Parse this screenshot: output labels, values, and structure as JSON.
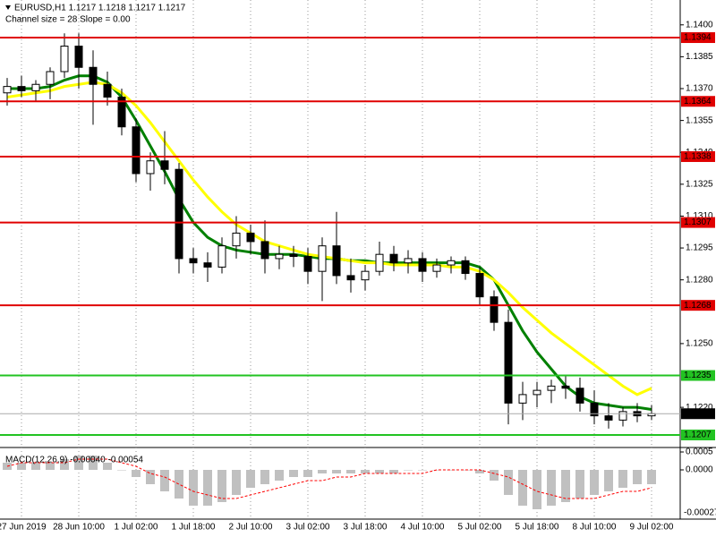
{
  "chart_data": [
    {
      "type": "candlestick",
      "title": "EURUSD,H1  1.1217 1.1218 1.1217 1.1217",
      "subtitle": "Channel size = 28 Slope = 0.00",
      "categories": [
        null,
        "27 Jun 2019",
        null,
        null,
        null,
        "28 Jun 10:00",
        null,
        null,
        null,
        "1 Jul 02:00",
        null,
        null,
        null,
        "1 Jul 18:00",
        null,
        null,
        null,
        "2 Jul 10:00",
        null,
        null,
        null,
        "3 Jul 02:00",
        null,
        null,
        null,
        "3 Jul 18:00",
        null,
        null,
        null,
        "4 Jul 10:00",
        null,
        null,
        null,
        "5 Jul 02:00",
        null,
        null,
        null,
        "5 Jul 18:00",
        null,
        null,
        null,
        "8 Jul 10:00",
        null,
        null,
        null,
        "9 Jul 02:00"
      ],
      "ohlc": [
        [
          1.1368,
          1.1375,
          1.1362,
          1.1371
        ],
        [
          1.1371,
          1.1376,
          1.1366,
          1.1369
        ],
        [
          1.1369,
          1.1374,
          1.1364,
          1.1372
        ],
        [
          1.1372,
          1.138,
          1.1365,
          1.1378
        ],
        [
          1.1378,
          1.1396,
          1.1375,
          1.139
        ],
        [
          1.139,
          1.1396,
          1.137,
          1.138
        ],
        [
          1.138,
          1.1388,
          1.1353,
          1.1372
        ],
        [
          1.1372,
          1.1378,
          1.1362,
          1.1366
        ],
        [
          1.1366,
          1.137,
          1.1348,
          1.1352
        ],
        [
          1.1352,
          1.1356,
          1.1326,
          1.133
        ],
        [
          1.133,
          1.134,
          1.1322,
          1.1336
        ],
        [
          1.1336,
          1.135,
          1.1325,
          1.1332
        ],
        [
          1.1332,
          1.1335,
          1.1283,
          1.129
        ],
        [
          1.129,
          1.1295,
          1.1283,
          1.1288
        ],
        [
          1.1288,
          1.1293,
          1.1279,
          1.1286
        ],
        [
          1.1286,
          1.13,
          1.1283,
          1.1296
        ],
        [
          1.1296,
          1.131,
          1.129,
          1.1302
        ],
        [
          1.1302,
          1.1306,
          1.1292,
          1.1298
        ],
        [
          1.1298,
          1.1308,
          1.1283,
          1.129
        ],
        [
          1.129,
          1.1296,
          1.1285,
          1.1292
        ],
        [
          1.1292,
          1.1296,
          1.1286,
          1.1291
        ],
        [
          1.1291,
          1.1295,
          1.1278,
          1.1284
        ],
        [
          1.1284,
          1.13,
          1.127,
          1.1296
        ],
        [
          1.1296,
          1.1312,
          1.1278,
          1.1282
        ],
        [
          1.1282,
          1.129,
          1.1274,
          1.128
        ],
        [
          1.128,
          1.1287,
          1.1275,
          1.1284
        ],
        [
          1.1284,
          1.1298,
          1.1282,
          1.1292
        ],
        [
          1.1292,
          1.1296,
          1.1284,
          1.1288
        ],
        [
          1.1288,
          1.1294,
          1.1283,
          1.129
        ],
        [
          1.129,
          1.1293,
          1.1279,
          1.1284
        ],
        [
          1.1284,
          1.129,
          1.1281,
          1.1287
        ],
        [
          1.1287,
          1.1291,
          1.1283,
          1.1289
        ],
        [
          1.1289,
          1.1291,
          1.128,
          1.1283
        ],
        [
          1.1283,
          1.1286,
          1.1268,
          1.1272
        ],
        [
          1.1272,
          1.1275,
          1.1256,
          1.126
        ],
        [
          1.126,
          1.1266,
          1.1212,
          1.1222
        ],
        [
          1.1222,
          1.1232,
          1.1214,
          1.1226
        ],
        [
          1.1226,
          1.1232,
          1.122,
          1.1228
        ],
        [
          1.1228,
          1.1233,
          1.1222,
          1.123
        ],
        [
          1.123,
          1.1235,
          1.1224,
          1.1229
        ],
        [
          1.1229,
          1.1234,
          1.1218,
          1.1222
        ],
        [
          1.1222,
          1.1228,
          1.1212,
          1.1216
        ],
        [
          1.1216,
          1.1222,
          1.121,
          1.1214
        ],
        [
          1.1214,
          1.122,
          1.1211,
          1.1218
        ],
        [
          1.1218,
          1.1222,
          1.1213,
          1.1216
        ],
        [
          1.1216,
          1.1221,
          1.1214,
          1.1217
        ]
      ],
      "ma": [
        {
          "color": "#008000",
          "values": [
            1.137,
            1.137,
            1.137,
            1.1371,
            1.1374,
            1.1376,
            1.1376,
            1.1373,
            1.1366,
            1.1355,
            1.1343,
            1.1331,
            1.1318,
            1.1307,
            1.13,
            1.1296,
            1.1294,
            1.1293,
            1.1292,
            1.1292,
            1.1292,
            1.1291,
            1.129,
            1.129,
            1.1289,
            1.1289,
            1.1288,
            1.1288,
            1.1288,
            1.1288,
            1.1288,
            1.1288,
            1.1288,
            1.1286,
            1.128,
            1.1268,
            1.1256,
            1.1246,
            1.1238,
            1.123,
            1.1225,
            1.1222,
            1.1221,
            1.122,
            1.122,
            1.1219
          ]
        },
        {
          "color": "#ffff00",
          "values": [
            1.1366,
            1.1367,
            1.1368,
            1.1369,
            1.1371,
            1.1372,
            1.1373,
            1.1372,
            1.1368,
            1.1362,
            1.1354,
            1.1345,
            1.1336,
            1.1327,
            1.1319,
            1.1312,
            1.1306,
            1.1302,
            1.1298,
            1.1296,
            1.1294,
            1.1292,
            1.1291,
            1.129,
            1.1289,
            1.1288,
            1.1288,
            1.1287,
            1.1287,
            1.1287,
            1.1287,
            1.1286,
            1.1286,
            1.1284,
            1.128,
            1.1274,
            1.1267,
            1.1261,
            1.1255,
            1.125,
            1.1245,
            1.124,
            1.1235,
            1.123,
            1.1226,
            1.1229
          ]
        }
      ],
      "levels": [
        {
          "value": 1.1394,
          "label": "1.1394",
          "color": "#e00000"
        },
        {
          "value": 1.1364,
          "label": "1.1364",
          "color": "#e00000"
        },
        {
          "value": 1.1338,
          "label": "1.1338",
          "color": "#e00000"
        },
        {
          "value": 1.1307,
          "label": "1.1307",
          "color": "#e00000"
        },
        {
          "value": 1.1268,
          "label": "1.1268",
          "color": "#e00000"
        },
        {
          "value": 1.1235,
          "label": "1.1235",
          "color": "#22c322"
        },
        {
          "value": 1.1207,
          "label": "1.1207",
          "color": "#22c322"
        }
      ],
      "last_price": {
        "value": 1.1217,
        "label": "1.1217"
      },
      "ylim": [
        1.12011,
        1.14117
      ],
      "yticks": [
        {
          "value": 1.14,
          "label": "1.1400"
        },
        {
          "value": 1.1385,
          "label": "1.1385"
        },
        {
          "value": 1.137,
          "label": "1.1370"
        },
        {
          "value": 1.1355,
          "label": "1.1355"
        },
        {
          "value": 1.134,
          "label": "1.1340"
        },
        {
          "value": 1.1325,
          "label": "1.1325"
        },
        {
          "value": 1.131,
          "label": "1.1310"
        },
        1.1295,
        {
          "value": 1.128,
          "label": "1.1280"
        },
        {
          "value": 1.125,
          "label": "1.1250"
        },
        {
          "value": 1.122,
          "label": "1.1220"
        }
      ]
    },
    {
      "type": "macd",
      "title": "MACD(12,26,9) -0.00040 -0.00054",
      "bottom_label": "-0.00027",
      "histogram": {
        "color": "#c0c0c0",
        "values": [
          0.0002,
          0.0002,
          0.0002,
          0.0002,
          0.0003,
          0.0004,
          0.0004,
          0.0002,
          0,
          -0.0002,
          -0.0004,
          -0.0006,
          -0.0008,
          -0.001,
          -0.001,
          -0.0009,
          -0.0007,
          -0.0005,
          -0.0004,
          -0.0003,
          -0.0002,
          -0.0002,
          -0.0001,
          -0.0001,
          -0.0001,
          -0.0001,
          -0.0001,
          -0.0001,
          0,
          0,
          0,
          0,
          0,
          -0.0001,
          -0.0003,
          -0.0007,
          -0.001,
          -0.0011,
          -0.001,
          -0.0009,
          -0.0008,
          -0.0007,
          -0.0006,
          -0.0005,
          -0.0004,
          -0.0004
        ]
      },
      "signal": {
        "color": "#ff0000",
        "values": [
          0.0001,
          0.0002,
          0.0002,
          0.0002,
          0.0002,
          0.0003,
          0.0003,
          0.0003,
          0.0002,
          0.0001,
          -0.0001,
          -0.0002,
          -0.0004,
          -0.0006,
          -0.0007,
          -0.0008,
          -0.0008,
          -0.0007,
          -0.0006,
          -0.0005,
          -0.0004,
          -0.0003,
          -0.0003,
          -0.0002,
          -0.0002,
          -0.0001,
          -0.0001,
          -0.0001,
          -0.0001,
          -0.0001,
          0,
          0,
          0,
          0,
          -0.0001,
          -0.0002,
          -0.0004,
          -0.0006,
          -0.0007,
          -0.0008,
          -0.0008,
          -0.0008,
          -0.0007,
          -0.0006,
          -0.0006,
          -0.0005
        ]
      },
      "ylim": [
        -0.001375,
        0.00055
      ],
      "yticks": [
        {
          "value": 0.0005,
          "label": "0.0005"
        },
        {
          "value": 0,
          "label": "0.0000"
        }
      ]
    }
  ]
}
